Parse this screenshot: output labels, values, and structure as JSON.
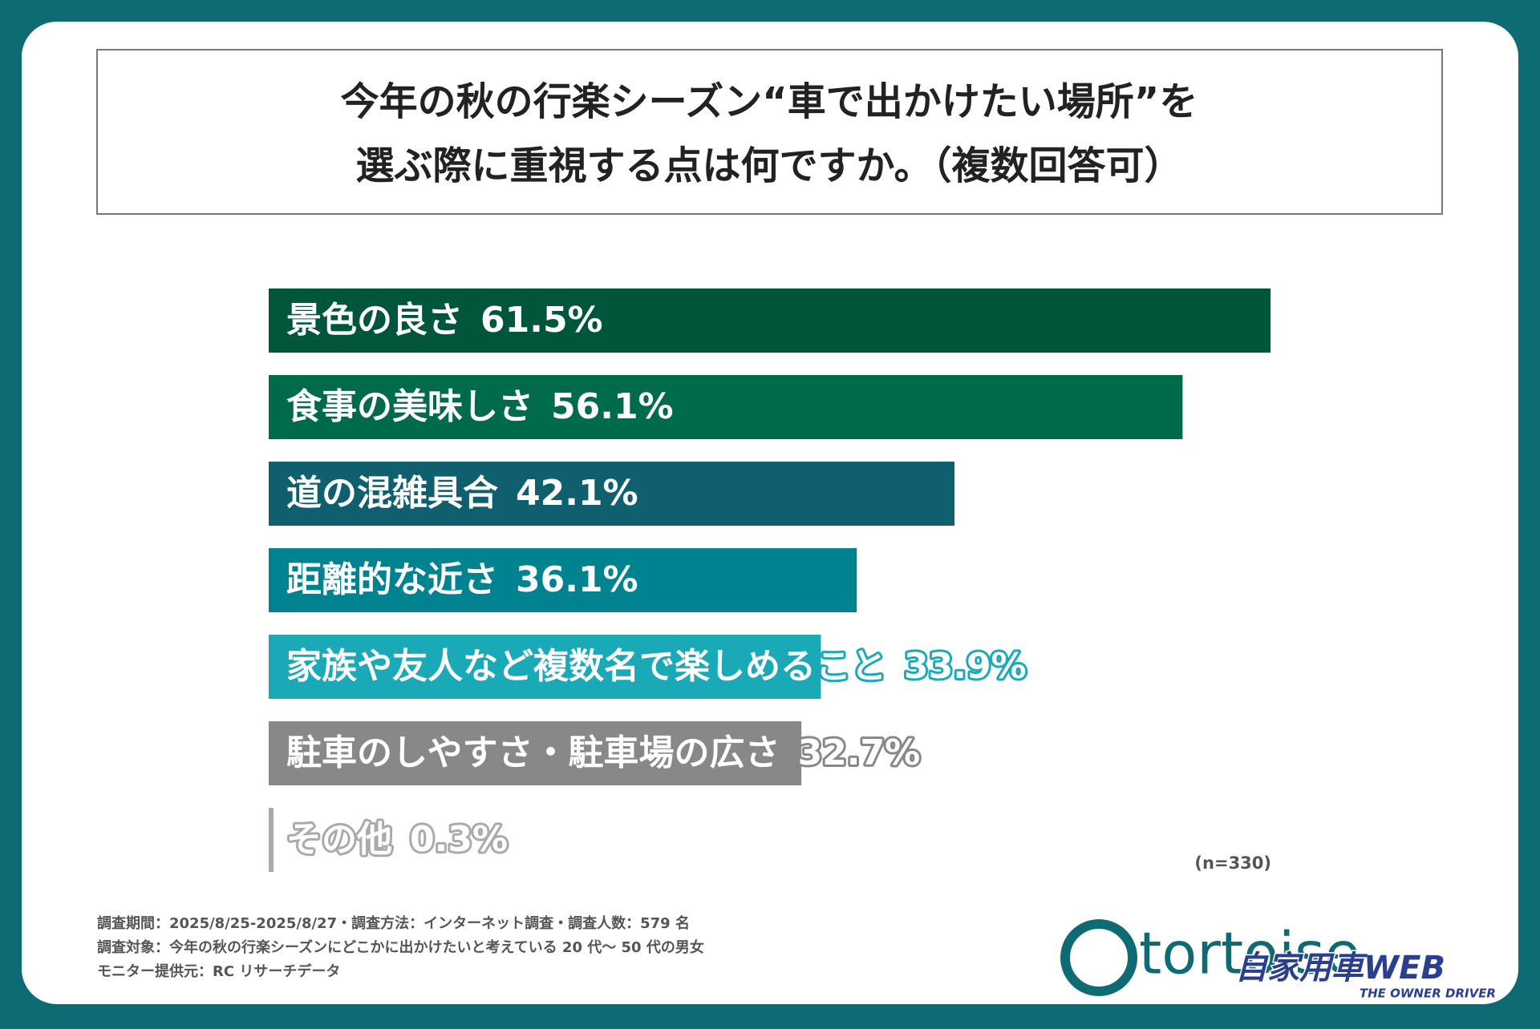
{
  "chart_data": {
    "type": "bar",
    "title": [
      "今年の秋の行楽シーズン“車で出かけたい場所”を",
      "選ぶ際に重視する点は何ですか。（複数回答可）"
    ],
    "categories": [
      "景色の良さ",
      "食事の美味しさ",
      "道の混雑具合",
      "距離的な近さ",
      "家族や友人など複数名で楽しめること",
      "駐車のしやすさ・駐車場の広さ",
      "その他"
    ],
    "values": [
      61.5,
      56.1,
      42.1,
      36.1,
      33.9,
      32.7,
      0.3
    ],
    "value_labels": [
      "61.5%",
      "56.1%",
      "42.1%",
      "36.1%",
      "33.9%",
      "32.7%",
      "0.3%"
    ],
    "colors": [
      "#00563b",
      "#006b4a",
      "#0f5f6e",
      "#008390",
      "#1aaab7",
      "#888888",
      "#aaaaaa"
    ],
    "note": "(n=330)",
    "footnotes": [
      "調査期間：2025/8/25-2025/8/27・調査方法：インターネット調査・調査人数：579 名",
      "調査対象：今年の秋の行楽シーズンにどこかに出かけたいと考えている 20 代〜 50 代の男女",
      "モニター提供元：RC リサーチデータ"
    ]
  },
  "logo": {
    "brand": "tortoise",
    "partner": "自家用車WEB",
    "tagline": "THE OWNER DRIVER"
  }
}
